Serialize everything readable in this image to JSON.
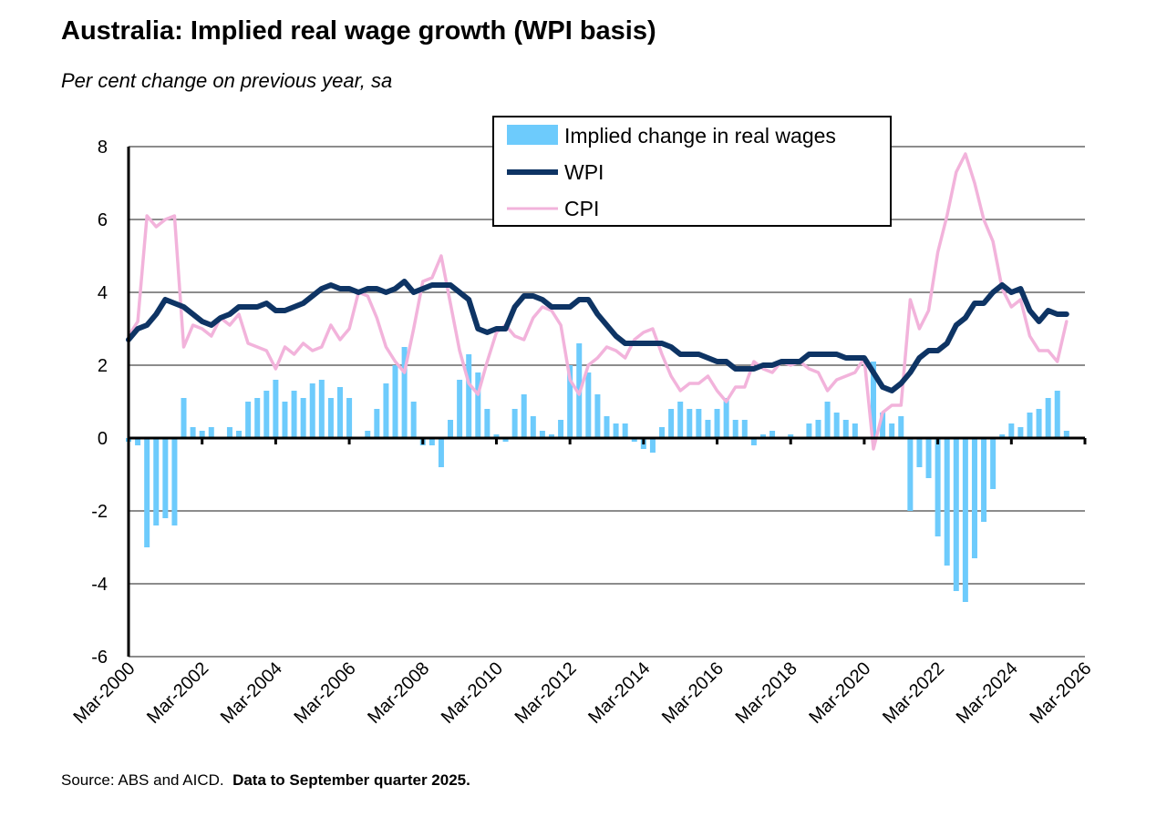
{
  "title": "Australia: Implied real wage growth (WPI basis)",
  "subtitle": "Per cent change on previous year, sa",
  "source": {
    "text": "Source: ABS and AICD.",
    "note": "Data to September quarter 2025."
  },
  "colors": {
    "real": "#6DCBFC",
    "wpi": "#0E3464",
    "cpi": "#F2B3DB",
    "grid": "#8C8C8C"
  },
  "chart_data": {
    "type": "bar+line",
    "title": "Australia: Implied real wage growth (WPI basis)",
    "ylabel": "Per cent change on previous year, sa",
    "ylim": [
      -6,
      8
    ],
    "yticks": [
      "8",
      "6",
      "4",
      "2",
      "0",
      "-2",
      "-4",
      "-6"
    ],
    "xticks": [
      "Mar-2000",
      "Mar-2002",
      "Mar-2004",
      "Mar-2006",
      "Mar-2008",
      "Mar-2010",
      "Mar-2012",
      "Mar-2014",
      "Mar-2016",
      "Mar-2018",
      "Mar-2020",
      "Mar-2022",
      "Mar-2024",
      "Mar-2026"
    ],
    "x_start": "Mar-2000",
    "x_end": "Sep-2025",
    "frequency": "quarterly",
    "grid": "horizontal",
    "legend_position": "top-right",
    "series": [
      {
        "name": "Implied change in real wages",
        "kind": "bar",
        "values": [
          -0.1,
          -0.2,
          -3.0,
          -2.4,
          -2.2,
          -2.4,
          1.1,
          0.3,
          0.2,
          0.3,
          0.0,
          0.3,
          0.2,
          1.0,
          1.1,
          1.3,
          1.6,
          1.0,
          1.3,
          1.1,
          1.5,
          1.6,
          1.1,
          1.4,
          1.1,
          0.0,
          0.2,
          0.8,
          1.5,
          2.0,
          2.5,
          1.0,
          -0.2,
          -0.2,
          -0.8,
          0.5,
          1.6,
          2.3,
          1.8,
          0.8,
          0.1,
          -0.1,
          0.8,
          1.2,
          0.6,
          0.2,
          0.1,
          0.5,
          2.0,
          2.6,
          1.8,
          1.2,
          0.6,
          0.4,
          0.4,
          -0.1,
          -0.3,
          -0.4,
          0.3,
          0.8,
          1.0,
          0.8,
          0.8,
          0.5,
          0.8,
          1.1,
          0.5,
          0.5,
          -0.2,
          0.1,
          0.2,
          0.0,
          0.1,
          0.0,
          0.4,
          0.5,
          1.0,
          0.7,
          0.5,
          0.4,
          0.0,
          2.1,
          0.7,
          0.4,
          0.6,
          -2.0,
          -0.8,
          -1.1,
          -2.7,
          -3.5,
          -4.2,
          -4.5,
          -3.3,
          -2.3,
          -1.4,
          0.1,
          0.4,
          0.3,
          0.7,
          0.8,
          1.1,
          1.3,
          0.2
        ]
      },
      {
        "name": "WPI",
        "kind": "line",
        "values": [
          2.7,
          3.0,
          3.1,
          3.4,
          3.8,
          3.7,
          3.6,
          3.4,
          3.2,
          3.1,
          3.3,
          3.4,
          3.6,
          3.6,
          3.6,
          3.7,
          3.5,
          3.5,
          3.6,
          3.7,
          3.9,
          4.1,
          4.2,
          4.1,
          4.1,
          4.0,
          4.1,
          4.1,
          4.0,
          4.1,
          4.3,
          4.0,
          4.1,
          4.2,
          4.2,
          4.2,
          4.0,
          3.8,
          3.0,
          2.9,
          3.0,
          3.0,
          3.6,
          3.9,
          3.9,
          3.8,
          3.6,
          3.6,
          3.6,
          3.8,
          3.8,
          3.4,
          3.1,
          2.8,
          2.6,
          2.6,
          2.6,
          2.6,
          2.6,
          2.5,
          2.3,
          2.3,
          2.3,
          2.2,
          2.1,
          2.1,
          1.9,
          1.9,
          1.9,
          2.0,
          2.0,
          2.1,
          2.1,
          2.1,
          2.3,
          2.3,
          2.3,
          2.3,
          2.2,
          2.2,
          2.2,
          1.8,
          1.4,
          1.3,
          1.5,
          1.8,
          2.2,
          2.4,
          2.4,
          2.6,
          3.1,
          3.3,
          3.7,
          3.7,
          4.0,
          4.2,
          4.0,
          4.1,
          3.5,
          3.2,
          3.5,
          3.4,
          3.4
        ]
      },
      {
        "name": "CPI",
        "kind": "line",
        "values": [
          2.8,
          3.2,
          6.1,
          5.8,
          6.0,
          6.1,
          2.5,
          3.1,
          3.0,
          2.8,
          3.3,
          3.1,
          3.4,
          2.6,
          2.5,
          2.4,
          1.9,
          2.5,
          2.3,
          2.6,
          2.4,
          2.5,
          3.1,
          2.7,
          3.0,
          4.0,
          3.9,
          3.3,
          2.5,
          2.1,
          1.8,
          3.0,
          4.3,
          4.4,
          5.0,
          3.7,
          2.4,
          1.5,
          1.2,
          2.1,
          2.9,
          3.1,
          2.8,
          2.7,
          3.3,
          3.6,
          3.5,
          3.1,
          1.6,
          1.2,
          2.0,
          2.2,
          2.5,
          2.4,
          2.2,
          2.7,
          2.9,
          3.0,
          2.3,
          1.7,
          1.3,
          1.5,
          1.5,
          1.7,
          1.3,
          1.0,
          1.4,
          1.4,
          2.1,
          1.9,
          1.8,
          2.1,
          2.0,
          2.1,
          1.9,
          1.8,
          1.3,
          1.6,
          1.7,
          1.8,
          2.2,
          -0.3,
          0.7,
          0.9,
          0.9,
          3.8,
          3.0,
          3.5,
          5.1,
          6.1,
          7.3,
          7.8,
          7.0,
          6.0,
          5.4,
          4.1,
          3.6,
          3.8,
          2.8,
          2.4,
          2.4,
          2.1,
          3.2
        ]
      }
    ]
  }
}
